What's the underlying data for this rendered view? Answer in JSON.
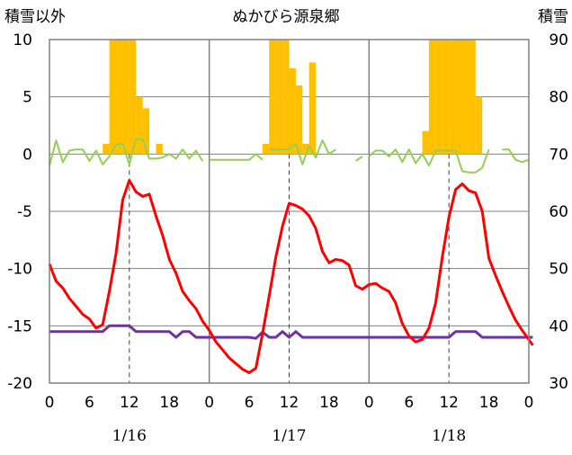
{
  "chart_data": {
    "type": "line",
    "title": "ぬかびら源泉郷",
    "left_axis": {
      "label": "積雪以外",
      "ylim": [
        -20,
        10
      ],
      "ticks": [
        10,
        5,
        0,
        -5,
        -10,
        -15,
        -20
      ]
    },
    "right_axis": {
      "label": "積雪",
      "ylim": [
        30,
        90
      ],
      "ticks": [
        90,
        80,
        70,
        60,
        50,
        40,
        30
      ]
    },
    "x_ticks": [
      "0",
      "6",
      "12",
      "18",
      "0",
      "6",
      "12",
      "18",
      "0",
      "6",
      "12",
      "18",
      "0"
    ],
    "x_ticks_hours": [
      0,
      6,
      12,
      18,
      24,
      30,
      36,
      42,
      48,
      54,
      60,
      66,
      72
    ],
    "dates": [
      {
        "label": "1/16",
        "hour": 12
      },
      {
        "label": "1/17",
        "hour": 36
      },
      {
        "label": "1/18",
        "hour": 60
      }
    ],
    "grid": true,
    "day_separators": [
      24,
      48
    ],
    "noon_lines": [
      12,
      36,
      60
    ],
    "colors": {
      "temperature": "#ff0000",
      "snow_depth": "#7030a0",
      "wind": "#92d050",
      "precipitation": "#ffc000",
      "grid": "#808080"
    },
    "series": [
      {
        "key": "temperature",
        "axis": "left",
        "points": [
          [
            0,
            -9.6
          ],
          [
            1,
            -11.1
          ],
          [
            2,
            -11.7
          ],
          [
            3,
            -12.6
          ],
          [
            4,
            -13.3
          ],
          [
            5,
            -14
          ],
          [
            6,
            -14.4
          ],
          [
            7,
            -15.2
          ],
          [
            8,
            -14.9
          ],
          [
            9,
            -12
          ],
          [
            10,
            -8.7
          ],
          [
            11,
            -4
          ],
          [
            12,
            -2.3
          ],
          [
            13,
            -3.3
          ],
          [
            14,
            -3.7
          ],
          [
            15,
            -3.5
          ],
          [
            16,
            -5.4
          ],
          [
            17,
            -7.1
          ],
          [
            18,
            -9.2
          ],
          [
            19,
            -10.4
          ],
          [
            20,
            -12
          ],
          [
            21,
            -12.8
          ],
          [
            22,
            -13.5
          ],
          [
            23,
            -14.6
          ],
          [
            24,
            -15.4
          ],
          [
            25,
            -16.4
          ],
          [
            26,
            -17.1
          ],
          [
            27,
            -17.8
          ],
          [
            28,
            -18.3
          ],
          [
            29,
            -18.8
          ],
          [
            30,
            -19.1
          ],
          [
            31,
            -18.7
          ],
          [
            32,
            -15.7
          ],
          [
            33,
            -12.4
          ],
          [
            34,
            -9
          ],
          [
            35,
            -6.3
          ],
          [
            36,
            -4.3
          ],
          [
            37,
            -4.5
          ],
          [
            38,
            -4.8
          ],
          [
            39,
            -5.4
          ],
          [
            40,
            -6.5
          ],
          [
            41,
            -8.5
          ],
          [
            42,
            -9.5
          ],
          [
            43,
            -9.2
          ],
          [
            44,
            -9.3
          ],
          [
            45,
            -9.7
          ],
          [
            46,
            -11.5
          ],
          [
            47,
            -11.8
          ],
          [
            48,
            -11.4
          ],
          [
            49,
            -11.3
          ],
          [
            50,
            -11.7
          ],
          [
            51,
            -12
          ],
          [
            52,
            -13
          ],
          [
            53,
            -14.8
          ],
          [
            54,
            -15.9
          ],
          [
            55,
            -16.4
          ],
          [
            56,
            -16.2
          ],
          [
            57,
            -15.2
          ],
          [
            58,
            -13
          ],
          [
            59,
            -9
          ],
          [
            60,
            -5.5
          ],
          [
            61,
            -3.1
          ],
          [
            62,
            -2.6
          ],
          [
            63,
            -3.2
          ],
          [
            64,
            -3.4
          ],
          [
            65,
            -5
          ],
          [
            66,
            -9.1
          ],
          [
            67,
            -10.6
          ],
          [
            68,
            -12
          ],
          [
            69,
            -13.3
          ],
          [
            70,
            -14.5
          ],
          [
            71,
            -15.4
          ],
          [
            72,
            -16.2
          ],
          [
            72.6,
            -16.7
          ]
        ]
      },
      {
        "key": "snow_depth",
        "axis": "right",
        "points": [
          [
            0,
            39
          ],
          [
            8,
            39
          ],
          [
            9,
            40
          ],
          [
            12,
            40
          ],
          [
            13,
            39
          ],
          [
            18,
            39
          ],
          [
            19,
            38
          ],
          [
            20,
            39
          ],
          [
            21,
            39
          ],
          [
            22,
            38
          ],
          [
            30,
            38
          ],
          [
            31,
            37.8
          ],
          [
            32,
            38.9
          ],
          [
            33,
            38
          ],
          [
            34,
            38
          ],
          [
            35,
            39
          ],
          [
            36,
            38
          ],
          [
            37,
            39
          ],
          [
            38,
            38
          ],
          [
            60,
            38
          ],
          [
            61,
            39
          ],
          [
            64,
            39
          ],
          [
            65,
            38
          ],
          [
            72.6,
            38
          ]
        ]
      },
      {
        "key": "wind",
        "axis": "left",
        "segments": [
          [
            [
              0,
              -1
            ],
            [
              1,
              1.2
            ],
            [
              2,
              -0.7
            ],
            [
              3,
              0.3
            ],
            [
              4,
              0.4
            ],
            [
              5,
              0.4
            ],
            [
              6,
              -0.6
            ],
            [
              7,
              0.3
            ],
            [
              8,
              -0.9
            ],
            [
              9,
              -0.2
            ],
            [
              10,
              0.8
            ],
            [
              11,
              0.9
            ],
            [
              12,
              -0.9
            ],
            [
              13,
              1.3
            ],
            [
              14,
              1.3
            ],
            [
              15,
              -0.4
            ],
            [
              16,
              -0.4
            ],
            [
              17,
              -0.3
            ],
            [
              18,
              0
            ],
            [
              19,
              -0.4
            ],
            [
              20,
              0.4
            ],
            [
              21,
              -0.4
            ],
            [
              22,
              0.3
            ],
            [
              23,
              -0.6
            ]
          ],
          [
            [
              24,
              -0.5
            ],
            [
              30,
              -0.5
            ],
            [
              31,
              0
            ],
            [
              32,
              -0.5
            ]
          ],
          [
            [
              33,
              0.4
            ],
            [
              34,
              0.4
            ],
            [
              35,
              0.4
            ],
            [
              36,
              0.4
            ],
            [
              37,
              0.9
            ],
            [
              38,
              -0.9
            ],
            [
              39,
              0.7
            ],
            [
              40,
              -0.3
            ],
            [
              41,
              1.2
            ],
            [
              42,
              0
            ],
            [
              43,
              0.4
            ]
          ],
          [
            [
              46,
              -0.6
            ],
            [
              47,
              -0.2
            ]
          ],
          [
            [
              48,
              -0.2
            ],
            [
              49,
              0.3
            ],
            [
              50,
              0.3
            ],
            [
              51,
              -0.2
            ],
            [
              52,
              0.4
            ],
            [
              53,
              -0.7
            ],
            [
              54,
              0.4
            ],
            [
              55,
              -0.8
            ],
            [
              56,
              0
            ],
            [
              57,
              -1
            ],
            [
              58,
              0.3
            ],
            [
              59,
              0.3
            ],
            [
              60,
              0.3
            ],
            [
              61,
              0.3
            ],
            [
              62,
              -1.5
            ],
            [
              63,
              -1.6
            ],
            [
              64,
              -1.6
            ],
            [
              65,
              -1.2
            ],
            [
              66,
              0.4
            ]
          ],
          [
            [
              68,
              0.4
            ],
            [
              69,
              0.4
            ],
            [
              70,
              -0.5
            ],
            [
              71,
              -0.7
            ],
            [
              72,
              -0.5
            ]
          ]
        ]
      },
      {
        "key": "precipitation",
        "axis": "left",
        "bars": [
          [
            8,
            0.9
          ],
          [
            9,
            10
          ],
          [
            10,
            10
          ],
          [
            11,
            10
          ],
          [
            12,
            10
          ],
          [
            13,
            5
          ],
          [
            14,
            4
          ],
          [
            16,
            0.9
          ],
          [
            32,
            0.9
          ],
          [
            33,
            10
          ],
          [
            34,
            10
          ],
          [
            35,
            10
          ],
          [
            36,
            7.5
          ],
          [
            37,
            6
          ],
          [
            38,
            0.9
          ],
          [
            39,
            8
          ],
          [
            56,
            2
          ],
          [
            57,
            10
          ],
          [
            58,
            10
          ],
          [
            59,
            10
          ],
          [
            60,
            10
          ],
          [
            61,
            10
          ],
          [
            62,
            10
          ],
          [
            63,
            10
          ],
          [
            64,
            5
          ]
        ]
      }
    ]
  }
}
